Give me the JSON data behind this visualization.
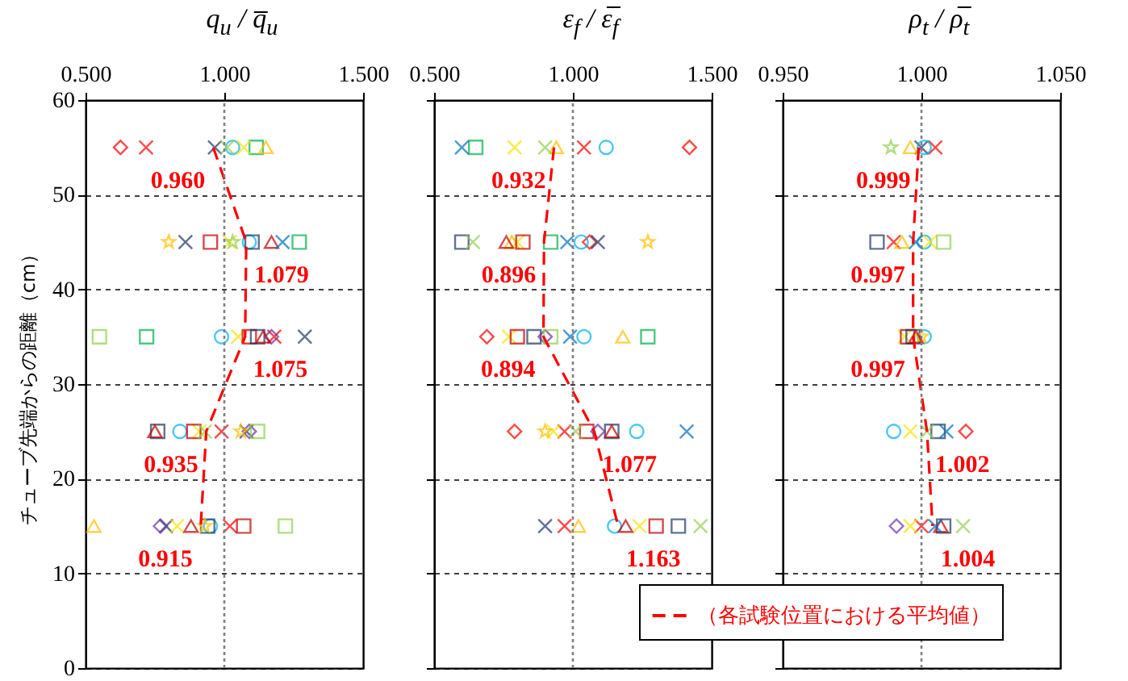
{
  "chart_data": [
    {
      "type": "scatter",
      "xlabel": "q$_{u}$ / q̅$_{u}$",
      "ylabel": "チューブ先端からの距離（cm）",
      "xlim": [
        0.5,
        1.5
      ],
      "xticks": [
        {
          "value": 0.5,
          "label": "0.500"
        },
        {
          "value": 1.0,
          "label": "1.000"
        },
        {
          "value": 1.5,
          "label": "1.500"
        }
      ],
      "ylim": [
        0,
        60
      ],
      "yticks": [
        0,
        10,
        20,
        30,
        40,
        50,
        60
      ],
      "grid": "y",
      "ref_lines": [
        {
          "axis": "x",
          "value": 1.0,
          "color": "#808080",
          "line_style": "dotted"
        }
      ],
      "series": [
        {
          "color": "#ff0000",
          "marker": "diamond",
          "x": [
            0.626
          ],
          "values": [
            55
          ]
        },
        {
          "color": "#ff0000",
          "marker": "cross",
          "x": [
            0.718,
            1.18,
            0.99,
            1.02
          ],
          "values": [
            55,
            35,
            25,
            15
          ]
        },
        {
          "color": "#1f3864",
          "marker": "cross",
          "x": [
            0.966,
            0.86,
            1.29,
            1.08,
            0.79
          ],
          "values": [
            55,
            45,
            35,
            25,
            15
          ]
        },
        {
          "color": "#00b0f0",
          "marker": "circle",
          "x": [
            1.03,
            1.09,
            0.99,
            0.84,
            0.95
          ],
          "values": [
            55,
            45,
            35,
            25,
            15
          ]
        },
        {
          "color": "#00b050",
          "marker": "square",
          "x": [
            1.115,
            1.27,
            0.72
          ],
          "values": [
            55,
            45,
            35
          ]
        },
        {
          "color": "#f5e400",
          "marker": "cross",
          "x": [
            1.07,
            1.02,
            1.05,
            0.91,
            0.83
          ],
          "values": [
            55,
            45,
            35,
            25,
            15
          ]
        },
        {
          "color": "#ffc000",
          "marker": "triangle",
          "x": [
            1.15,
            0.53
          ],
          "values": [
            55,
            15
          ]
        },
        {
          "color": "#92d050",
          "marker": "star",
          "x": [
            1.03
          ],
          "values": [
            45
          ]
        },
        {
          "color": "#c00000",
          "marker": "square",
          "x": [
            0.95,
            1.09,
            0.89,
            1.07
          ],
          "values": [
            45,
            35,
            25,
            15
          ]
        },
        {
          "color": "#1f3864",
          "marker": "square",
          "x": [
            1.1,
            1.12,
            0.76,
            0.94
          ],
          "values": [
            45,
            35,
            25,
            15
          ]
        },
        {
          "color": "#7030a0",
          "marker": "diamond",
          "x": [
            1.17,
            1.09,
            0.77
          ],
          "values": [
            35,
            25,
            15
          ]
        },
        {
          "color": "#ffc000",
          "marker": "star",
          "x": [
            0.8,
            1.06,
            0.93
          ],
          "values": [
            45,
            25,
            15
          ]
        },
        {
          "color": "#c00000",
          "marker": "triangle",
          "x": [
            1.17,
            1.14,
            0.75,
            0.88
          ],
          "values": [
            45,
            35,
            25,
            15
          ]
        },
        {
          "color": "#0070c0",
          "marker": "cross",
          "x": [
            1.21
          ],
          "values": [
            45
          ]
        },
        {
          "color": "#92d050",
          "marker": "cross",
          "x": [
            1.01,
            0.93
          ],
          "values": [
            55,
            25
          ]
        },
        {
          "color": "#92d050",
          "marker": "square",
          "x": [
            0.55,
            1.12,
            1.22
          ],
          "values": [
            35,
            25,
            15
          ]
        },
        {
          "type": "line",
          "color": "#ff0000",
          "line_style": "dashed",
          "x": [
            0.96,
            1.079,
            1.075,
            0.935,
            0.915
          ],
          "values": [
            55,
            45,
            35,
            25,
            15
          ]
        }
      ],
      "annotations": [
        {
          "text": "0.960",
          "x": 0.96,
          "y": 55
        },
        {
          "text": "1.079",
          "x": 1.079,
          "y": 45
        },
        {
          "text": "1.075",
          "x": 1.075,
          "y": 35
        },
        {
          "text": "0.935",
          "x": 0.935,
          "y": 25
        },
        {
          "text": "0.915",
          "x": 0.915,
          "y": 15
        }
      ]
    },
    {
      "type": "scatter",
      "xlabel": "ε$_{f}$ / ε̅$_{f}$",
      "xlim": [
        0.5,
        1.5
      ],
      "xticks": [
        {
          "value": 0.5,
          "label": "0.500"
        },
        {
          "value": 1.0,
          "label": "1.000"
        },
        {
          "value": 1.5,
          "label": "1.500"
        }
      ],
      "ylim": [
        0,
        60
      ],
      "yticks": [
        0,
        10,
        20,
        30,
        40,
        50,
        60
      ],
      "grid": "y",
      "tick_labels": "x",
      "ref_lines": [
        {
          "axis": "x",
          "value": 1.0,
          "color": "#808080",
          "line_style": "dotted"
        }
      ],
      "series": [
        {
          "color": "#ff0000",
          "marker": "diamond",
          "x": [
            1.42,
            1.06,
            0.69,
            0.79
          ],
          "values": [
            55,
            45,
            35,
            25
          ]
        },
        {
          "color": "#ff0000",
          "marker": "cross",
          "x": [
            1.04,
            0.97,
            0.97
          ],
          "values": [
            55,
            25,
            15
          ]
        },
        {
          "color": "#1f3864",
          "marker": "cross",
          "x": [
            1.09,
            0.9
          ],
          "values": [
            45,
            15
          ]
        },
        {
          "color": "#00b0f0",
          "marker": "circle",
          "x": [
            1.12,
            1.03,
            1.04,
            1.23,
            1.15
          ],
          "values": [
            55,
            45,
            35,
            25,
            15
          ]
        },
        {
          "color": "#00b050",
          "marker": "square",
          "x": [
            0.65,
            0.92,
            1.27
          ],
          "values": [
            55,
            45,
            35
          ]
        },
        {
          "color": "#f5e400",
          "marker": "cross",
          "x": [
            0.79,
            0.8,
            0.77,
            0.93,
            1.24
          ],
          "values": [
            55,
            45,
            35,
            25,
            15
          ]
        },
        {
          "color": "#ffc000",
          "marker": "triangle",
          "x": [
            0.94,
            0.78,
            1.18,
            1.02
          ],
          "values": [
            55,
            45,
            35,
            15
          ]
        },
        {
          "color": "#c00000",
          "marker": "square",
          "x": [
            0.82,
            0.8,
            1.05,
            1.3
          ],
          "values": [
            45,
            35,
            25,
            15
          ]
        },
        {
          "color": "#1f3864",
          "marker": "square",
          "x": [
            0.6,
            0.86,
            1.14,
            1.38
          ],
          "values": [
            45,
            35,
            25,
            15
          ]
        },
        {
          "color": "#7030a0",
          "marker": "diamond",
          "x": [
            0.9,
            1.09
          ],
          "values": [
            35,
            25
          ]
        },
        {
          "color": "#ffc000",
          "marker": "star",
          "x": [
            1.27,
            0.9
          ],
          "values": [
            45,
            25
          ]
        },
        {
          "color": "#c00000",
          "marker": "triangle",
          "x": [
            0.76,
            1.14,
            1.19
          ],
          "values": [
            45,
            25,
            15
          ]
        },
        {
          "color": "#0070c0",
          "marker": "cross",
          "x": [
            0.6,
            0.98,
            0.99,
            1.41
          ],
          "values": [
            55,
            45,
            35,
            25
          ]
        },
        {
          "color": "#92d050",
          "marker": "cross",
          "x": [
            0.9,
            0.64,
            1.01,
            1.46
          ],
          "values": [
            55,
            45,
            25,
            15
          ]
        },
        {
          "color": "#92d050",
          "marker": "square",
          "x": [
            0.92
          ],
          "values": [
            35
          ]
        },
        {
          "type": "line",
          "color": "#ff0000",
          "line_style": "dashed",
          "x": [
            0.932,
            0.896,
            0.894,
            1.077,
            1.163
          ],
          "values": [
            55,
            45,
            35,
            25,
            15
          ]
        }
      ],
      "annotations": [
        {
          "text": "0.932",
          "x": 0.932,
          "y": 55
        },
        {
          "text": "0.896",
          "x": 0.896,
          "y": 45
        },
        {
          "text": "0.894",
          "x": 0.894,
          "y": 35
        },
        {
          "text": "1.077",
          "x": 1.077,
          "y": 25
        },
        {
          "text": "1.163",
          "x": 1.163,
          "y": 15
        }
      ]
    },
    {
      "type": "scatter",
      "xlabel": "ρ$_{t}$ / ρ̅$_{t}$",
      "xlim": [
        0.95,
        1.05
      ],
      "xticks": [
        {
          "value": 0.95,
          "label": "0.950"
        },
        {
          "value": 1.0,
          "label": "1.000"
        },
        {
          "value": 1.05,
          "label": "1.050"
        }
      ],
      "ylim": [
        0,
        60
      ],
      "yticks": [
        0,
        10,
        20,
        30,
        40,
        50,
        60
      ],
      "grid": "y",
      "tick_labels": "x",
      "legend": "bottom left",
      "ref_lines": [
        {
          "axis": "x",
          "value": 1.0,
          "color": "#808080",
          "line_style": "dotted"
        }
      ],
      "series": [
        {
          "color": "#ff0000",
          "marker": "diamond",
          "x": [
            1.016
          ],
          "values": [
            25
          ]
        },
        {
          "color": "#ff0000",
          "marker": "cross",
          "x": [
            1.005,
            0.99,
            1.0
          ],
          "values": [
            55,
            45,
            15
          ]
        },
        {
          "color": "#1f3864",
          "marker": "cross",
          "x": [
            1.0
          ],
          "values": [
            55
          ]
        },
        {
          "color": "#00b0f0",
          "marker": "circle",
          "x": [
            1.001,
            1.001,
            1.001,
            0.99
          ],
          "values": [
            55,
            45,
            35,
            25
          ]
        },
        {
          "color": "#f5e400",
          "marker": "cross",
          "x": [
            1.003,
            0.994,
            0.996,
            0.996
          ],
          "values": [
            45,
            35,
            25,
            15
          ]
        },
        {
          "color": "#ffc000",
          "marker": "triangle",
          "x": [
            0.996,
            0.993
          ],
          "values": [
            55,
            45
          ]
        },
        {
          "color": "#92d050",
          "marker": "star",
          "x": [
            0.989
          ],
          "values": [
            55
          ]
        },
        {
          "color": "#c00000",
          "marker": "square",
          "x": [
            0.995
          ],
          "values": [
            35
          ]
        },
        {
          "color": "#1f3864",
          "marker": "square",
          "x": [
            0.984,
            0.997,
            1.006,
            1.008
          ],
          "values": [
            45,
            35,
            25,
            15
          ]
        },
        {
          "color": "#7030a0",
          "marker": "diamond",
          "x": [
            0.991
          ],
          "values": [
            15
          ]
        },
        {
          "color": "#ffc000",
          "marker": "star",
          "x": [
            1.0
          ],
          "values": [
            35
          ]
        },
        {
          "color": "#c00000",
          "marker": "triangle",
          "x": [
            0.998,
            1.007
          ],
          "values": [
            35,
            15
          ]
        },
        {
          "color": "#0070c0",
          "marker": "cross",
          "x": [
            0.998,
            1.009,
            1.005
          ],
          "values": [
            45,
            25,
            15
          ]
        },
        {
          "color": "#92d050",
          "marker": "cross",
          "x": [
            1.002,
            1.015
          ],
          "values": [
            25,
            15
          ]
        },
        {
          "color": "#92d050",
          "marker": "square",
          "x": [
            1.008
          ],
          "values": [
            45
          ]
        },
        {
          "type": "line",
          "name": "（各試験位置における平均値）",
          "color": "#ff0000",
          "line_style": "dashed",
          "x": [
            0.999,
            0.997,
            0.997,
            1.002,
            1.004
          ],
          "values": [
            55,
            45,
            35,
            25,
            15
          ]
        }
      ],
      "annotations": [
        {
          "text": "0.999",
          "x": 0.999,
          "y": 55
        },
        {
          "text": "0.997",
          "x": 0.997,
          "y": 45
        },
        {
          "text": "0.997",
          "x": 0.997,
          "y": 35
        },
        {
          "text": "1.002",
          "x": 1.002,
          "y": 25
        },
        {
          "text": "1.004",
          "x": 1.004,
          "y": 15
        }
      ]
    }
  ]
}
